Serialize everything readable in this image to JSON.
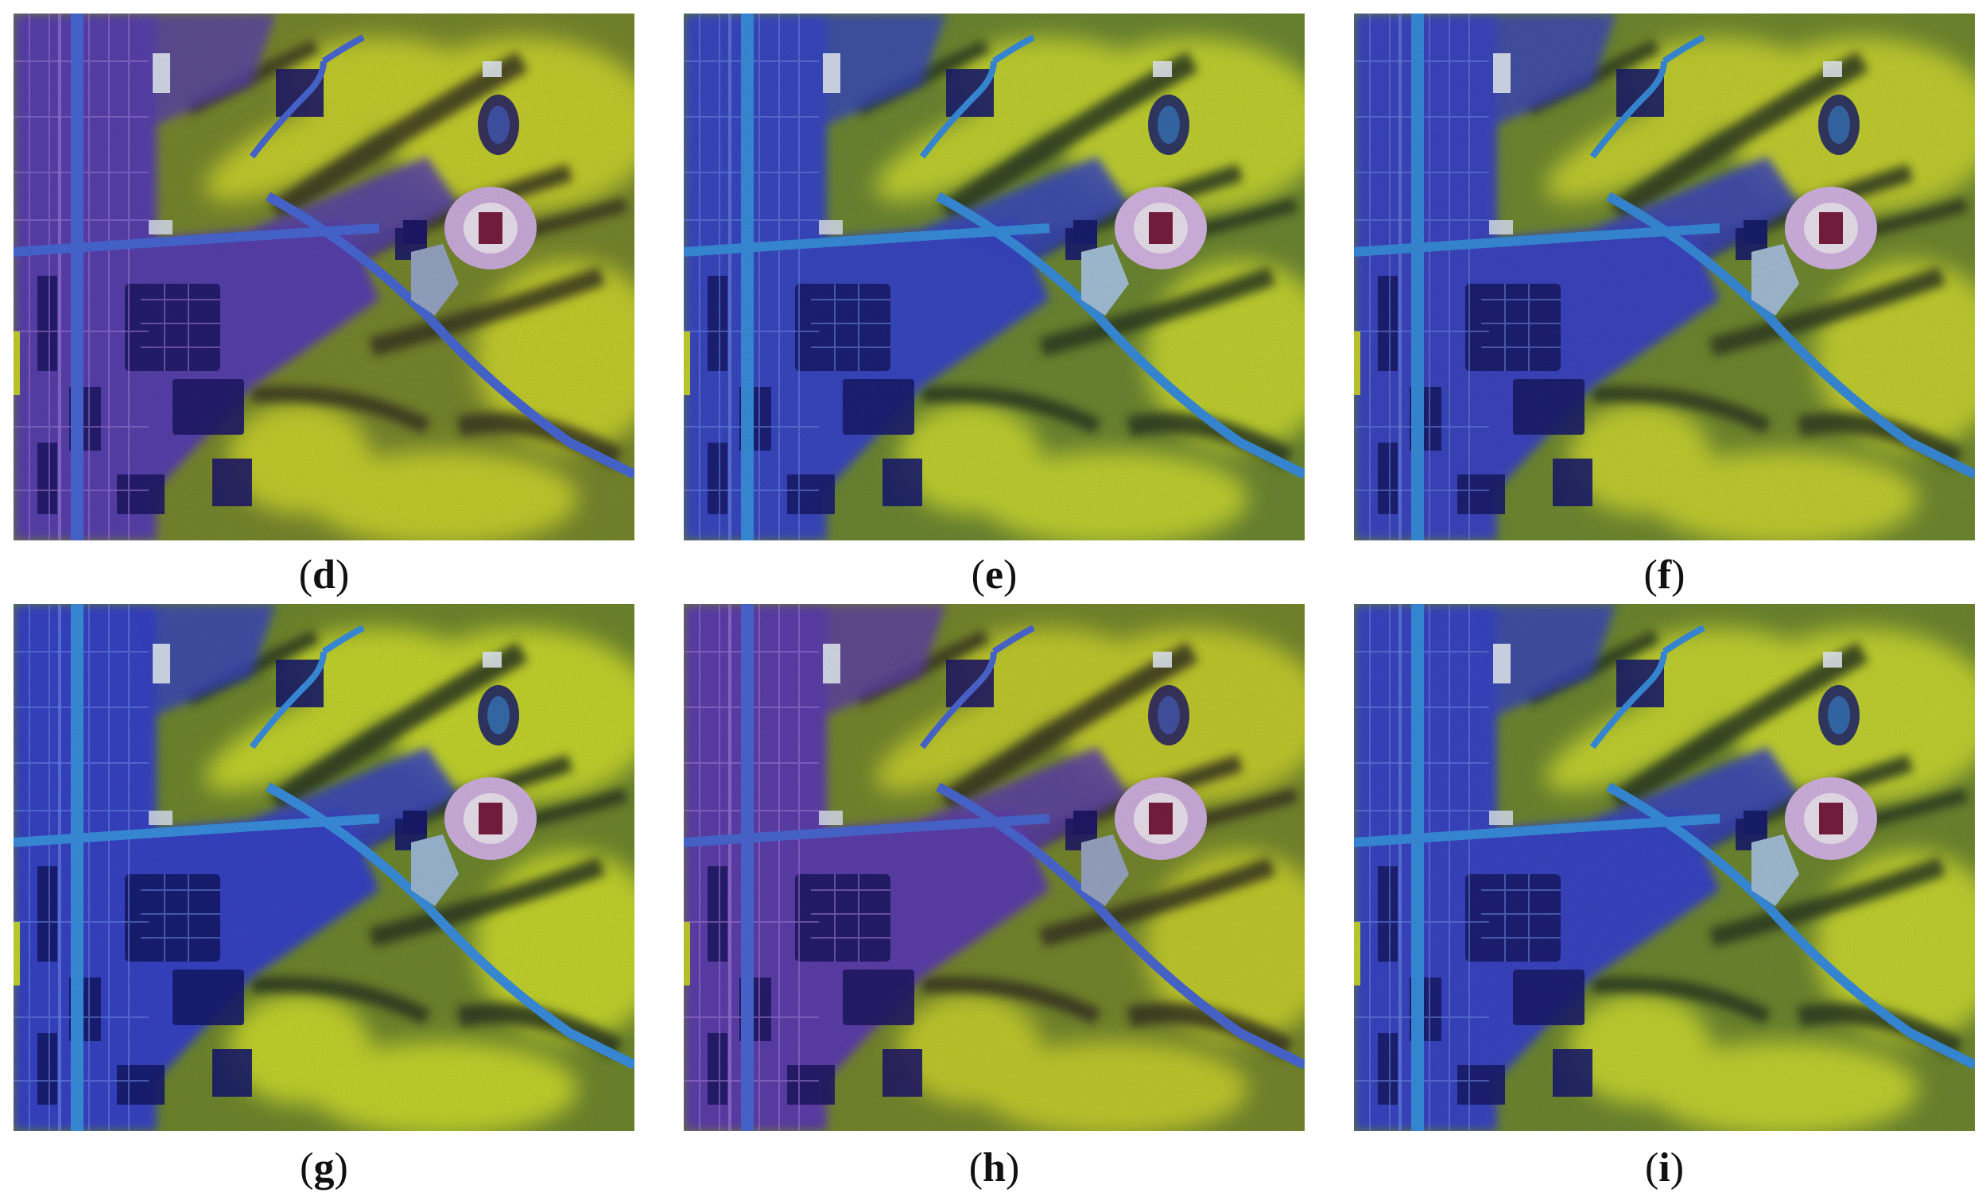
{
  "panels": [
    {
      "id": "d",
      "label": "d",
      "tint": "purple"
    },
    {
      "id": "e",
      "label": "e",
      "tint": "blue"
    },
    {
      "id": "f",
      "label": "f",
      "tint": "blue"
    },
    {
      "id": "g",
      "label": "g",
      "tint": "blue"
    },
    {
      "id": "h",
      "label": "h",
      "tint": "purple"
    },
    {
      "id": "i",
      "label": "i",
      "tint": "blue"
    }
  ],
  "palette": {
    "urban_blue": "#3a45c8",
    "urban_purple": "#6a3fb0",
    "vegetation_green": "#7a8f2a",
    "vegetation_yellow": "#c8d030",
    "shadow_dark": "#2c3a22",
    "water_navy": "#1a2070",
    "road_cyan": "#3c8ee0",
    "stadium_pink": "#d8b8e8"
  }
}
